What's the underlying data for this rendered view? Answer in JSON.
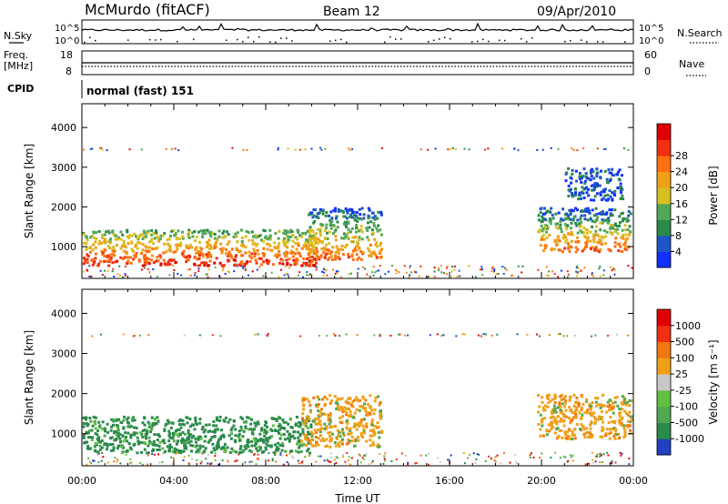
{
  "header": {
    "station": "McMurdo (fitACF)",
    "beam": "Beam 12",
    "date": "09/Apr/2010",
    "cpid_label": "CPID",
    "cpid_value": "normal (fast) 151",
    "nsky_label": "N.Sky",
    "nsearch_label": "N.Search",
    "freq_label": "Freq.",
    "freq_unit": "[MHz]",
    "nave_label": "Nave",
    "noise_tick_hi": "10^5",
    "noise_tick_lo": "10^0",
    "freq_tick_hi": "18",
    "freq_tick_lo": "8",
    "nave_tick_hi": "60",
    "nave_tick_lo": "0"
  },
  "chart_data": [
    {
      "type": "heatmap",
      "name": "power",
      "ylabel": "Slant Range [km]",
      "xlabel": "",
      "colorbar_label": "Power [dB]",
      "colorbar_ticks": [
        "4",
        "8",
        "12",
        "16",
        "20",
        "24",
        "28"
      ],
      "colorbar_colors": [
        "#1030ff",
        "#1f55c8",
        "#2a8a4a",
        "#52a858",
        "#d8c020",
        "#f0a018",
        "#ff7010",
        "#f03010",
        "#e00000"
      ],
      "xlim": [
        0,
        24
      ],
      "ylim": [
        200,
        4600
      ],
      "y_ticks": [
        "1000",
        "2000",
        "3000",
        "4000"
      ],
      "regions": [
        {
          "x0": 0.0,
          "x1": 10.3,
          "y0": 550,
          "y1": 1450,
          "level": "high"
        },
        {
          "x0": 9.8,
          "x1": 13.0,
          "y0": 700,
          "y1": 2000,
          "level": "mid"
        },
        {
          "x0": 19.8,
          "x1": 23.9,
          "y0": 900,
          "y1": 2000,
          "level": "mid"
        },
        {
          "x0": 21.0,
          "x1": 23.5,
          "y0": 2200,
          "y1": 3000,
          "level": "low"
        }
      ]
    },
    {
      "type": "heatmap",
      "name": "velocity",
      "ylabel": "Slant Range [km]",
      "xlabel": "Time UT",
      "colorbar_label": "Velocity [m s⁻¹]",
      "colorbar_ticks": [
        "1000",
        "500",
        "100",
        "25",
        "-25",
        "-100",
        "-500",
        "-1000"
      ],
      "colorbar_colors": [
        "#2040c0",
        "#2a8a4a",
        "#50a850",
        "#60c040",
        "#c8c8c8",
        "#f0a018",
        "#f07810",
        "#f03010",
        "#e00000"
      ],
      "xlim": [
        0,
        24
      ],
      "ylim": [
        200,
        4600
      ],
      "y_ticks": [
        "1000",
        "2000",
        "3000",
        "4000"
      ],
      "x_ticks": [
        "00:00",
        "04:00",
        "08:00",
        "12:00",
        "16:00",
        "20:00",
        "00:00"
      ],
      "regions": [
        {
          "x0": 0.0,
          "x1": 10.0,
          "y0": 550,
          "y1": 1450,
          "level": "green"
        },
        {
          "x0": 9.5,
          "x1": 13.0,
          "y0": 700,
          "y1": 2000,
          "level": "orange"
        },
        {
          "x0": 19.8,
          "x1": 23.9,
          "y0": 900,
          "y1": 2000,
          "level": "orange"
        }
      ]
    }
  ]
}
